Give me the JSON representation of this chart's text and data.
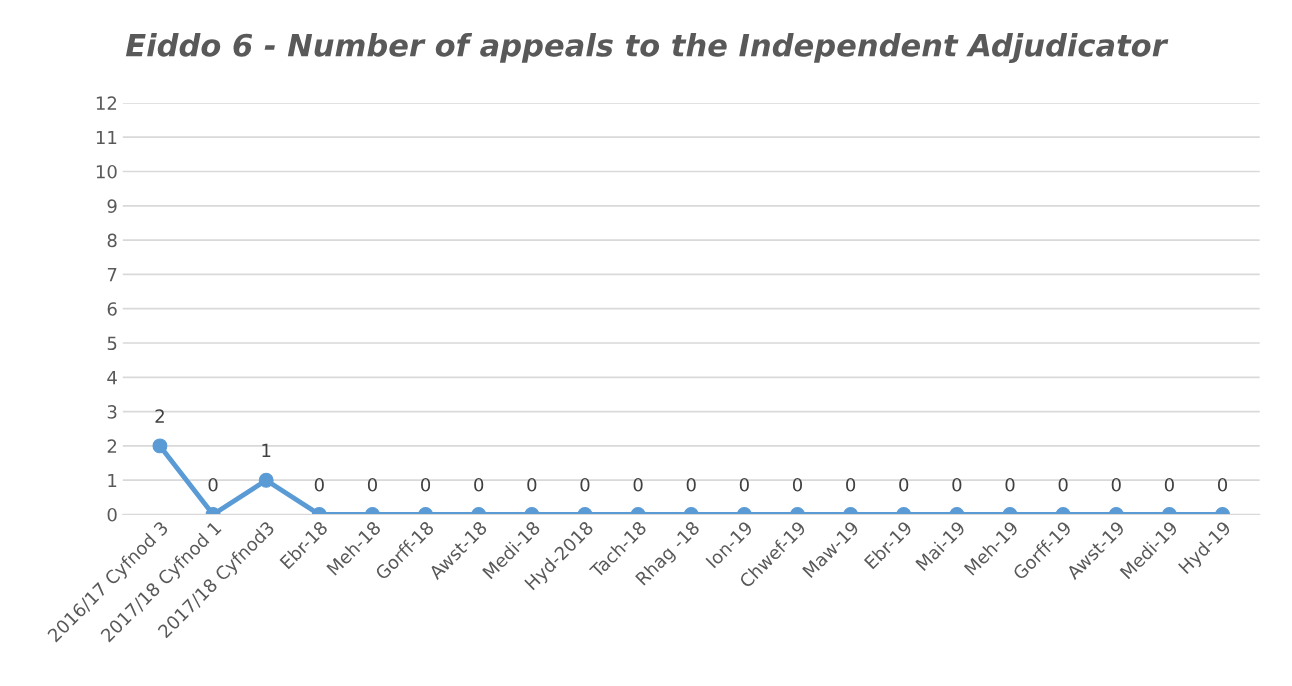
{
  "chart_data": {
    "type": "line",
    "title": "Eiddo 6 - Number of appeals to the Independent Adjudicator",
    "categories": [
      "2016/17 Cyfnod 3",
      "2017/18 Cyfnod 1",
      "2017/18 Cyfnod3",
      "Ebr-18",
      "Meh-18",
      "Gorff-18",
      "Awst-18",
      "Medi-18",
      "Hyd-2018",
      "Tach-18",
      "Rhag -18",
      "Ion-19",
      "Chwef-19",
      "Maw-19",
      "Ebr-19",
      "Mai-19",
      "Meh-19",
      "Gorff-19",
      "Awst-19",
      "Medi-19",
      "Hyd-19"
    ],
    "series": [
      {
        "color": "#5b9bd5",
        "values": [
          2,
          0,
          1,
          0,
          0,
          0,
          0,
          0,
          0,
          0,
          0,
          0,
          0,
          0,
          0,
          0,
          0,
          0,
          0,
          0,
          0
        ]
      }
    ],
    "ylim": [
      0,
      12
    ],
    "yticks": [
      0,
      1,
      2,
      3,
      4,
      5,
      6,
      7,
      8,
      9,
      10,
      11,
      12
    ],
    "grid": "y",
    "marker": "circle",
    "line_style": "solid",
    "data_labels": true,
    "legend": false
  }
}
